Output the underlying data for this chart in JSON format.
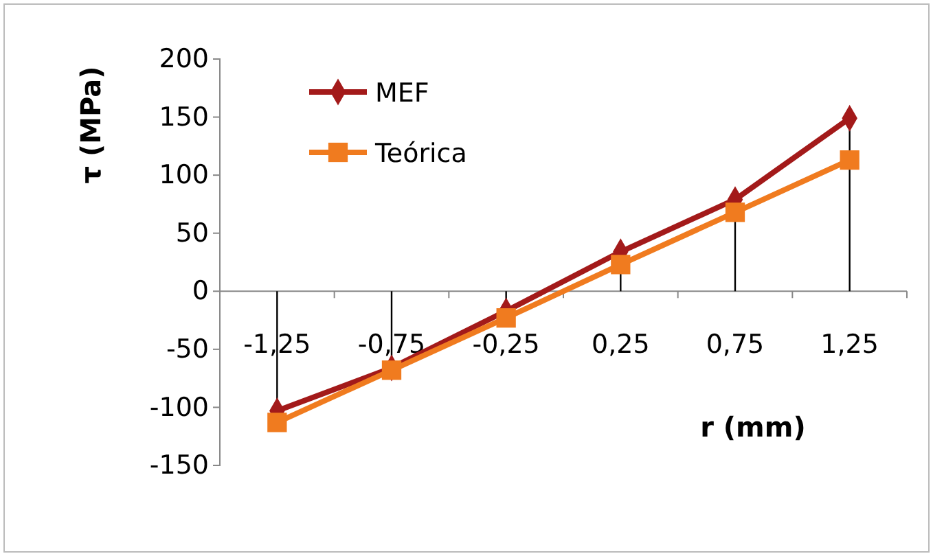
{
  "chart_data": {
    "type": "line",
    "xlabel": "r (mm)",
    "ylabel": "τ (MPa)",
    "categories": [
      "-1,25",
      "-0,75",
      "-0,25",
      "0,25",
      "0,75",
      "1,25"
    ],
    "series": [
      {
        "name": "MEF",
        "color": "#a31a1a",
        "marker": "diamond",
        "values": [
          -103,
          -66,
          -17,
          34,
          79,
          149
        ],
        "errors": [
          [
            -103,
            0
          ],
          [
            -66,
            0
          ],
          [
            -17,
            0
          ],
          [
            0,
            34
          ],
          [
            0,
            79
          ],
          [
            0,
            149
          ]
        ]
      },
      {
        "name": "Teórica",
        "color": "#f07b1f",
        "marker": "square",
        "values": [
          -113,
          -68,
          -23,
          23,
          68,
          113
        ]
      }
    ],
    "ylim": [
      -150,
      200
    ],
    "yticks": [
      -150,
      -100,
      -50,
      0,
      50,
      100,
      150,
      200
    ],
    "grid": false,
    "legend": "top left"
  }
}
